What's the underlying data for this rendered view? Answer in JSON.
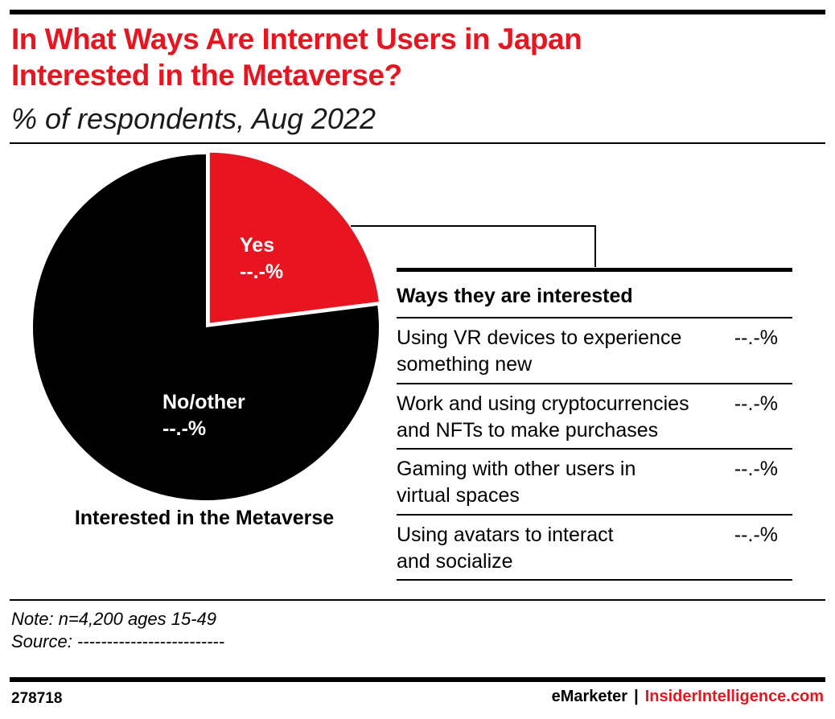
{
  "header": {
    "title_line1": "In What Ways Are Internet Users in Japan",
    "title_line2": "Interested in the Metaverse?",
    "subtitle": "% of respondents, Aug 2022"
  },
  "colors": {
    "accent": "#e8141f",
    "dark": "#000000"
  },
  "chart_data": {
    "type": "pie",
    "title": "Interested in the Metaverse",
    "slices": [
      {
        "label": "Yes",
        "value_label": "--.-%",
        "share": 0.23,
        "color": "#e8141f"
      },
      {
        "label": "No/other",
        "value_label": "--.-%",
        "share": 0.77,
        "color": "#000000"
      }
    ]
  },
  "table": {
    "title": "Ways they are interested",
    "rows": [
      {
        "label_line1": "Using VR devices to experience",
        "label_line2": "something new",
        "value": "--.-%"
      },
      {
        "label_line1": "Work and using cryptocurrencies",
        "label_line2": "and NFTs to make purchases",
        "value": "--.-%"
      },
      {
        "label_line1": "Gaming with other users in",
        "label_line2": "virtual spaces",
        "value": "--.-%"
      },
      {
        "label_line1": "Using avatars to interact",
        "label_line2": "and socialize",
        "value": "--.-%"
      }
    ]
  },
  "footer": {
    "note": "Note: n=4,200 ages 15-49",
    "source": "Source: -------------------------",
    "chart_id": "278718",
    "brand_left": "eMarketer",
    "brand_sep": "|",
    "brand_right": "InsiderIntelligence.com"
  }
}
